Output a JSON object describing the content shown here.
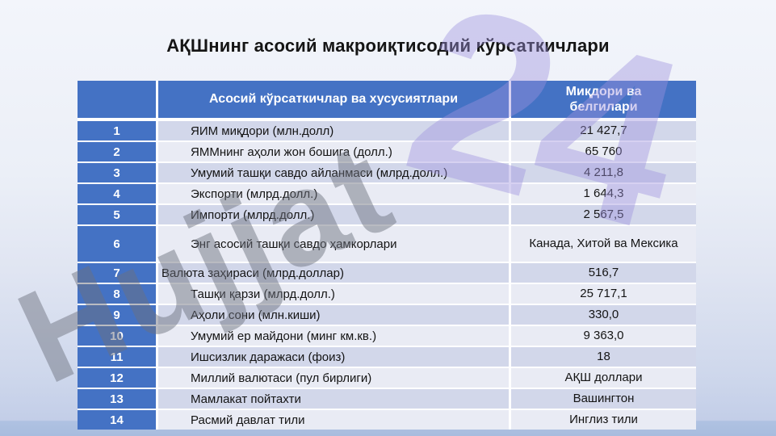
{
  "slide": {
    "title": "АҚШнинг асосий макроиқтисодий кўрсаткичлари",
    "watermark": {
      "word": "Hujjat",
      "number": "24"
    },
    "colors": {
      "accent_blue": "#4472C4",
      "band_dark": "#D2D7EA",
      "band_light": "#E9EBF4",
      "background_top": "#F3F5FB",
      "background_bottom": "#A8BCDE"
    }
  },
  "table": {
    "headers": {
      "col_indicator": "Асосий кўрсаткичлар ва хусусиятлари",
      "col_value": "Миқдори ва белгилари"
    },
    "rows": [
      {
        "no": "1",
        "label": "ЯИМ миқдори (млн.долл)",
        "value": "21 427,7"
      },
      {
        "no": "2",
        "label": "ЯММнинг аҳоли жон бошига (долл.)",
        "value": "65 760"
      },
      {
        "no": "3",
        "label": "Умумий ташқи савдо айланмаси (млрд.долл.)",
        "value": "4 211,8"
      },
      {
        "no": "4",
        "label": "Экспорти (млрд.долл.)",
        "value": "1 644,3"
      },
      {
        "no": "5",
        "label": "Импорти (млрд.долл.)",
        "value": "2 567,5"
      },
      {
        "no": "6",
        "label": "Энг асосий ташқи савдо ҳамкорлари",
        "value": "Канада, Хитой ва Мексика"
      },
      {
        "no": "7",
        "label": "Валюта заҳираси (млрд.доллар)",
        "value": "516,7"
      },
      {
        "no": "8",
        "label": "Ташқи қарзи (млрд.долл.)",
        "value": "25 717,1"
      },
      {
        "no": "9",
        "label": "Аҳоли сони (млн.киши)",
        "value": "330,0"
      },
      {
        "no": "10",
        "label": "Умумий ер майдони (минг км.кв.)",
        "value": "9 363,0"
      },
      {
        "no": "11",
        "label": "Ишсизлик даражаси (фоиз)",
        "value": "18"
      },
      {
        "no": "12",
        "label": "Миллий валютаси (пул бирлиги)",
        "value": "АҚШ доллари"
      },
      {
        "no": "13",
        "label": "Мамлакат пойтахти",
        "value": "Вашингтон"
      },
      {
        "no": "14",
        "label": "Расмий давлат тили",
        "value": "Инглиз тили"
      }
    ]
  }
}
